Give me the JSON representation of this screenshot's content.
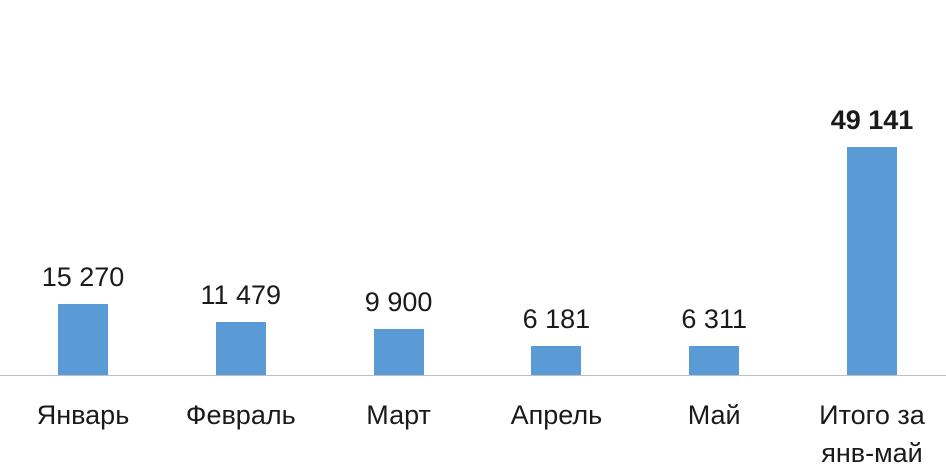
{
  "chart_data": {
    "type": "bar",
    "categories": [
      "Январь",
      "Февраль",
      "Март",
      "Апрель",
      "Май",
      "Итого за янв-май"
    ],
    "values": [
      15270,
      11479,
      9900,
      6181,
      6311,
      49141
    ],
    "value_labels": [
      "15 270",
      "11 479",
      "9 900",
      "6 181",
      "6 311",
      "49 141"
    ],
    "color": "#5b9bd5"
  }
}
